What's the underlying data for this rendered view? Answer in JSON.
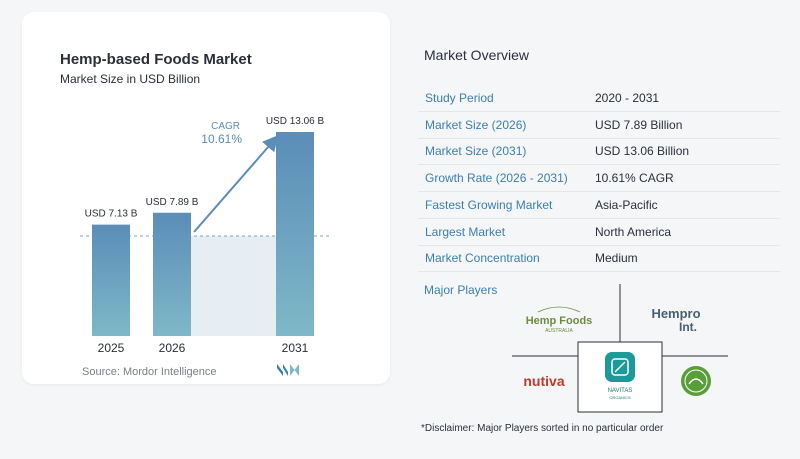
{
  "chart": {
    "title": "Hemp-based Foods Market",
    "subtitle": "Market Size in USD Billion",
    "source": "Source:  Mordor Intelligence",
    "cagr_label": "CAGR",
    "cagr_value": "10.61%"
  },
  "chart_data": {
    "type": "bar",
    "title": "Hemp-based Foods Market",
    "subtitle": "Market Size in USD Billion",
    "categories": [
      "2025",
      "2026",
      "2031"
    ],
    "values": [
      7.13,
      7.89,
      13.06
    ],
    "data_labels": [
      "USD 7.13 B",
      "USD 7.89 B",
      "USD 13.06 B"
    ],
    "unit": "USD Billion",
    "cagr": "10.61%",
    "bar_color": "#5b8db8",
    "grid": false
  },
  "overview": {
    "title": "Market Overview",
    "rows": [
      {
        "label": "Study Period",
        "value": "2020 - 2031"
      },
      {
        "label": "Market Size (2026)",
        "value": "USD 7.89 Billion"
      },
      {
        "label": "Market Size (2031)",
        "value": "USD 13.06 Billion"
      },
      {
        "label": "Growth Rate (2026 - 2031)",
        "value": "10.61% CAGR"
      },
      {
        "label": "Fastest Growing Market",
        "value": "Asia-Pacific"
      },
      {
        "label": "Largest Market",
        "value": "North America"
      },
      {
        "label": "Market Concentration",
        "value": "Medium"
      }
    ]
  },
  "players": {
    "title": "Major Players",
    "logos": [
      "Hemp Foods Australia",
      "Hempro Int.",
      "Nutiva",
      "Navitas Organics",
      "Manitoba Harvest"
    ],
    "hemp_foods_text": "Hemp Foods",
    "hemp_foods_sub": "AUSTRALIA",
    "hempro_text": "Hempro",
    "hempro_sub": "Int.",
    "nutiva_text": "nutiva",
    "navitas_text": "NAVITAS",
    "navitas_sub": "ORGANICS"
  },
  "disclaimer": "*Disclaimer: Major Players sorted in no particular order",
  "colors": {
    "bar": "#5b8db8",
    "accent": "#3e7fae",
    "nutiva": "#c0392b",
    "hemp_foods": "#6b8e3d",
    "navitas": "#1c9a9a"
  }
}
